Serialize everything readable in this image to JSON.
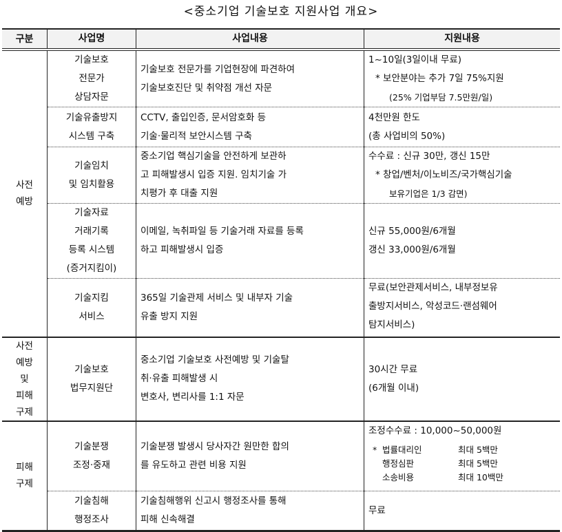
{
  "title": "<중소기업 기술보호 지원사업 개요>",
  "headers": [
    "구분",
    "사업명",
    "사업내용",
    "지원내용"
  ],
  "groups": {
    "prevention": "사전\n예방",
    "both": "사전\n예방\n및\n피해\n구제",
    "relief": "피해\n구제"
  },
  "rows": [
    {
      "name": [
        "기술보호",
        "전문가",
        "상담자문"
      ],
      "content": [
        "기술보호 전문가를 기업현장에 파견하여",
        "기술보호진단 및 취약점 개선 자문"
      ],
      "support": [
        "1~10일(3일이내 무료)",
        "* 보안분야는 추가 7일 75%지원",
        "(25% 기업부담 7.5만원/일)"
      ]
    },
    {
      "name": [
        "기술유출방지",
        "시스템 구축"
      ],
      "content": [
        "CCTV, 출입인증, 문서암호화 등",
        "기술·물리적 보안시스템 구축"
      ],
      "support": [
        "4천만원 한도",
        "(총 사업비의 50%)"
      ]
    },
    {
      "name": [
        "기술임치",
        "및 임치활용"
      ],
      "content": [
        "중소기업 핵심기술을 안전하게 보관하",
        "고 피해발생시 입증 지원. 임치기술 가",
        "치평가 후 대출 지원"
      ],
      "support": [
        "수수료 : 신규 30만, 갱신 15만",
        "* 창업/벤처/이노비즈/국가핵심기술",
        "보유기업은 1/3 감면)"
      ]
    },
    {
      "name": [
        "기술자료",
        "거래기록",
        "등록 시스템",
        "(증거지킴이)"
      ],
      "content": [
        "이메일, 녹취파일 등 기술거래 자료를 등록",
        "하고 피해발생시 입증"
      ],
      "support": [
        "신규 55,000원/6개월",
        "갱신 33,000원/6개월"
      ]
    },
    {
      "name": [
        "기술지킴",
        "서비스"
      ],
      "content": [
        "365일 기술관제 서비스 및 내부자 기술",
        "유출 방지 지원"
      ],
      "support": [
        "무료(보안관제서비스, 내부정보유",
        "출방지서비스, 악성코드·랜섬웨어",
        "탐지서비스)"
      ]
    },
    {
      "name": [
        "기술보호",
        "법무지원단"
      ],
      "content": [
        "중소기업 기술보호 사전예방 및 기술탈",
        "취·유출 피해발생 시",
        "변호사, 변리사를 1:1 자문"
      ],
      "support": [
        "30시간 무료",
        "(6개월 이내)"
      ]
    },
    {
      "name": [
        "기술분쟁",
        "조정·중재"
      ],
      "content": [
        "기술분쟁 발생시 당사자간 원만한 합의",
        "를 유도하고 관련 비용 지원"
      ],
      "support": [
        "조정수수료 : 10,000~50,000원"
      ],
      "fees": {
        "mark": "*",
        "items": [
          {
            "label": "법률대리인",
            "value": "최대 5백만"
          },
          {
            "label": "행정심판",
            "value": "최대 5백만"
          },
          {
            "label": "소송비용",
            "value": "최대 10백만"
          }
        ]
      }
    },
    {
      "name": [
        "기술침해",
        "행정조사"
      ],
      "content": [
        "기술침해행위 신고시 행정조사를 통해",
        "피해 신속해결"
      ],
      "support": [
        "무료"
      ]
    }
  ]
}
